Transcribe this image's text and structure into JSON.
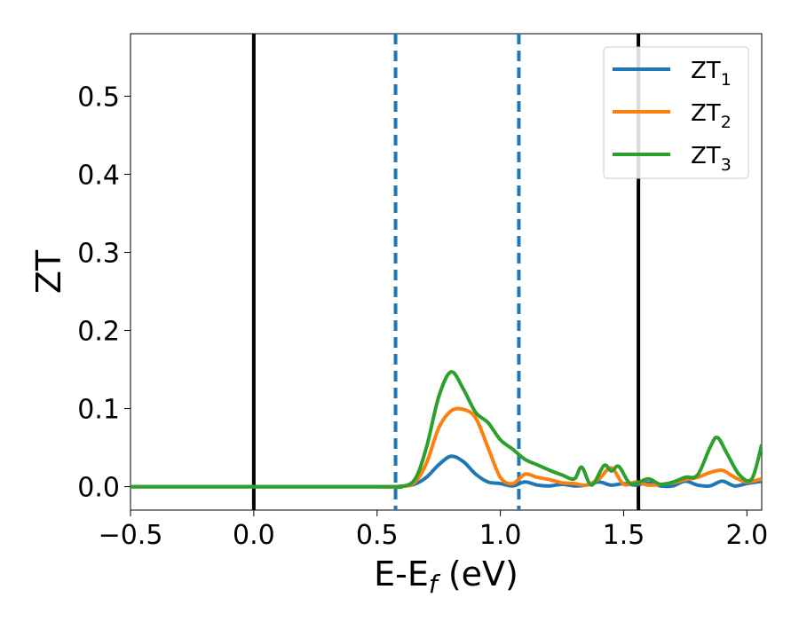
{
  "chart_data": {
    "type": "line",
    "xlabel": "E-E",
    "xlabel_sub": "f",
    "xlabel_unit": " (eV)",
    "ylabel": "ZT",
    "xlim": [
      -0.5,
      2.06
    ],
    "ylim": [
      -0.03,
      0.58
    ],
    "xticks": [
      -0.5,
      0.0,
      0.5,
      1.0,
      1.5,
      2.0
    ],
    "xtick_labels": [
      "−0.5",
      "0.0",
      "0.5",
      "1.0",
      "1.5",
      "2.0"
    ],
    "yticks": [
      0.0,
      0.1,
      0.2,
      0.3,
      0.4,
      0.5
    ],
    "ytick_labels": [
      "0.0",
      "0.1",
      "0.2",
      "0.3",
      "0.4",
      "0.5"
    ],
    "grid": false,
    "legend_position": "top-right",
    "vertical_lines": [
      {
        "x": 0.0,
        "style": "solid",
        "color": "#000000"
      },
      {
        "x": 1.56,
        "style": "solid",
        "color": "#000000"
      },
      {
        "x": 0.575,
        "style": "dashed",
        "color": "#1f77b4"
      },
      {
        "x": 1.075,
        "style": "dashed",
        "color": "#1f77b4"
      }
    ],
    "series": [
      {
        "name": "ZT",
        "sub": "1",
        "color": "#1f77b4",
        "x": [
          -0.5,
          0.5,
          0.58,
          0.65,
          0.7,
          0.75,
          0.8,
          0.85,
          0.9,
          0.95,
          1.0,
          1.05,
          1.1,
          1.15,
          1.2,
          1.25,
          1.3,
          1.35,
          1.4,
          1.45,
          1.5,
          1.55,
          1.6,
          1.65,
          1.7,
          1.75,
          1.8,
          1.85,
          1.9,
          1.95,
          2.0,
          2.06
        ],
        "y": [
          0.0,
          0.0,
          0.0,
          0.003,
          0.012,
          0.028,
          0.039,
          0.032,
          0.016,
          0.006,
          0.004,
          0.001,
          0.006,
          0.002,
          0.001,
          0.003,
          0.001,
          0.002,
          0.006,
          0.002,
          0.004,
          0.002,
          0.005,
          0.001,
          0.001,
          0.007,
          0.002,
          0.001,
          0.007,
          0.001,
          0.004,
          0.007
        ]
      },
      {
        "name": "ZT",
        "sub": "2",
        "color": "#ff7f0e",
        "x": [
          -0.5,
          0.5,
          0.58,
          0.65,
          0.7,
          0.75,
          0.8,
          0.85,
          0.9,
          0.95,
          1.0,
          1.05,
          1.1,
          1.15,
          1.2,
          1.25,
          1.3,
          1.35,
          1.4,
          1.45,
          1.5,
          1.55,
          1.6,
          1.65,
          1.7,
          1.75,
          1.8,
          1.85,
          1.9,
          1.95,
          2.0,
          2.06
        ],
        "y": [
          0.0,
          0.0,
          0.0,
          0.005,
          0.03,
          0.075,
          0.097,
          0.099,
          0.088,
          0.05,
          0.012,
          0.004,
          0.016,
          0.012,
          0.009,
          0.005,
          0.004,
          0.002,
          0.01,
          0.024,
          0.003,
          0.006,
          0.002,
          0.003,
          0.005,
          0.009,
          0.012,
          0.018,
          0.021,
          0.012,
          0.006,
          0.01
        ]
      },
      {
        "name": "ZT",
        "sub": "3",
        "color": "#2ca02c",
        "x": [
          -0.5,
          0.5,
          0.58,
          0.65,
          0.7,
          0.75,
          0.8,
          0.85,
          0.9,
          0.95,
          1.0,
          1.05,
          1.1,
          1.15,
          1.2,
          1.25,
          1.3,
          1.33,
          1.37,
          1.42,
          1.45,
          1.48,
          1.52,
          1.55,
          1.6,
          1.65,
          1.7,
          1.75,
          1.8,
          1.85,
          1.88,
          1.92,
          1.97,
          2.02,
          2.06
        ],
        "y": [
          0.0,
          0.0,
          0.0,
          0.008,
          0.05,
          0.115,
          0.147,
          0.125,
          0.095,
          0.082,
          0.06,
          0.048,
          0.035,
          0.028,
          0.021,
          0.015,
          0.01,
          0.025,
          0.002,
          0.027,
          0.02,
          0.026,
          0.006,
          0.004,
          0.01,
          0.003,
          0.006,
          0.012,
          0.015,
          0.05,
          0.063,
          0.042,
          0.015,
          0.01,
          0.054
        ]
      }
    ]
  }
}
